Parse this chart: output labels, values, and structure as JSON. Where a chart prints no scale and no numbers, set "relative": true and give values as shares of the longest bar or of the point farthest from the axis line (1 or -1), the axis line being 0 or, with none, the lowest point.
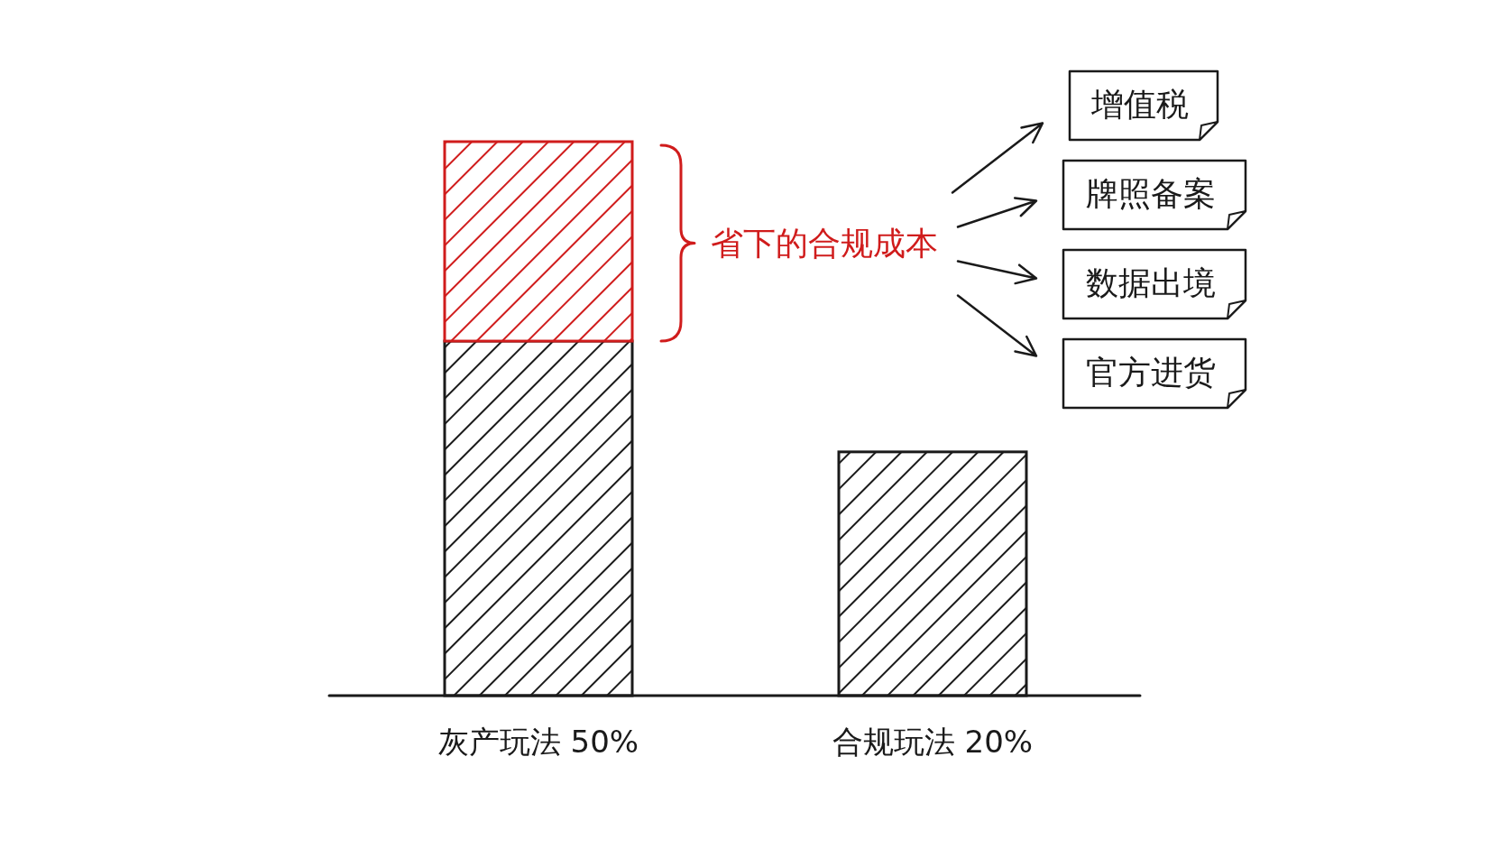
{
  "chart_data": {
    "type": "bar",
    "relative": true,
    "stacked": true,
    "categories": [
      "灰产玩法 50%",
      "合规玩法 20%"
    ],
    "series": [
      {
        "color": "#1a1a1a",
        "values": [
          0.64,
          0.44
        ]
      },
      {
        "name": "省下的合规成本",
        "color": "#d01c1c",
        "values": [
          0.36,
          null
        ]
      }
    ],
    "annotations": [
      "增值税",
      "牌照备案",
      "数据出境",
      "官方进货"
    ]
  }
}
